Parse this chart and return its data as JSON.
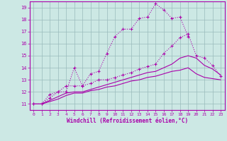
{
  "xlabel": "Windchill (Refroidissement éolien,°C)",
  "bg_color": "#cce8e4",
  "line_color": "#aa00aa",
  "grid_color": "#99bbbb",
  "xlim": [
    -0.5,
    23.5
  ],
  "ylim": [
    10.5,
    19.5
  ],
  "xticks": [
    0,
    1,
    2,
    3,
    4,
    5,
    6,
    7,
    8,
    9,
    10,
    11,
    12,
    13,
    14,
    15,
    16,
    17,
    18,
    19,
    20,
    21,
    22,
    23
  ],
  "yticks": [
    11,
    12,
    13,
    14,
    15,
    16,
    17,
    18,
    19
  ],
  "line1_x": [
    0,
    1,
    2,
    3,
    4,
    5,
    6,
    7,
    8,
    9,
    10,
    11,
    12,
    13,
    14,
    15,
    16,
    17,
    18,
    19
  ],
  "line1_y": [
    11,
    11,
    11.5,
    12,
    12,
    14,
    12.5,
    13.5,
    13.7,
    15.2,
    16.6,
    17.2,
    17.2,
    18.1,
    18.2,
    19.3,
    18.8,
    18.1,
    18.2,
    16.6
  ],
  "line2_x": [
    0,
    1,
    2,
    3,
    4,
    5,
    6,
    7,
    8,
    9,
    10,
    11,
    12,
    13,
    14,
    15,
    16,
    17,
    18,
    19,
    20,
    21,
    22,
    23
  ],
  "line2_y": [
    11,
    11,
    11.8,
    12,
    12.5,
    12.5,
    12.5,
    12.7,
    13,
    13,
    13.2,
    13.4,
    13.6,
    13.9,
    14.1,
    14.3,
    15.2,
    15.8,
    16.5,
    16.8,
    15.0,
    14.8,
    14.2,
    13.3
  ],
  "line3_x": [
    0,
    1,
    2,
    3,
    4,
    5,
    6,
    7,
    8,
    9,
    10,
    11,
    12,
    13,
    14,
    15,
    16,
    17,
    18,
    19,
    20,
    21,
    22,
    23
  ],
  "line3_y": [
    11,
    11,
    11.3,
    11.6,
    11.9,
    12.0,
    12.0,
    12.2,
    12.4,
    12.6,
    12.8,
    13.0,
    13.2,
    13.4,
    13.6,
    13.7,
    14.0,
    14.3,
    14.8,
    15.0,
    14.8,
    14.2,
    13.9,
    13.4
  ],
  "line4_x": [
    0,
    1,
    2,
    3,
    4,
    5,
    6,
    7,
    8,
    9,
    10,
    11,
    12,
    13,
    14,
    15,
    16,
    17,
    18,
    19,
    20,
    21,
    22,
    23
  ],
  "line4_y": [
    11,
    11,
    11.2,
    11.4,
    11.7,
    11.9,
    11.9,
    12.1,
    12.2,
    12.4,
    12.5,
    12.7,
    12.9,
    13.0,
    13.2,
    13.3,
    13.5,
    13.7,
    13.8,
    14.0,
    13.5,
    13.2,
    13.1,
    13.0
  ]
}
